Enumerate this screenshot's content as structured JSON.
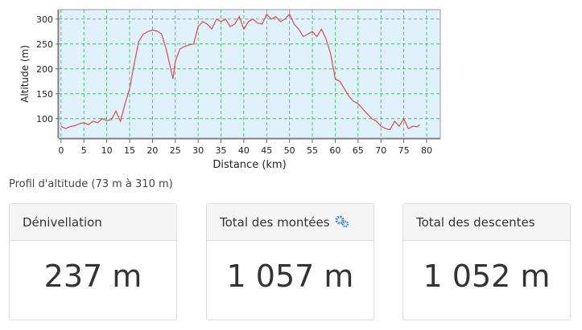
{
  "chart_data": {
    "type": "line",
    "x_label": "Distance (km)",
    "y_label": "Altitude (m)",
    "x": [
      0,
      1,
      2,
      3,
      4,
      5,
      6,
      7,
      8,
      9,
      10,
      11,
      12,
      13,
      14,
      15,
      16,
      17,
      18,
      19,
      20,
      21,
      22,
      23,
      24,
      24.5,
      25,
      26,
      27,
      28,
      29,
      30,
      31,
      32,
      33,
      34,
      35,
      36,
      37,
      38,
      39,
      40,
      41,
      42,
      43,
      44,
      45,
      46,
      47,
      48,
      49,
      50,
      51,
      52,
      53,
      54,
      55,
      56,
      57,
      58,
      59,
      60,
      61,
      62,
      63,
      64,
      65,
      66,
      67,
      68,
      69,
      70,
      71,
      72,
      73,
      74,
      75,
      76,
      77,
      78,
      78.5
    ],
    "values": [
      85,
      80,
      84,
      86,
      90,
      92,
      88,
      95,
      92,
      100,
      96,
      98,
      115,
      95,
      130,
      160,
      210,
      255,
      270,
      275,
      278,
      276,
      270,
      240,
      200,
      180,
      215,
      240,
      245,
      248,
      250,
      285,
      295,
      290,
      280,
      300,
      295,
      300,
      285,
      290,
      305,
      280,
      295,
      300,
      292,
      290,
      310,
      300,
      305,
      295,
      300,
      310,
      290,
      280,
      265,
      270,
      275,
      265,
      280,
      260,
      230,
      180,
      175,
      160,
      145,
      135,
      130,
      120,
      110,
      100,
      95,
      85,
      80,
      78,
      95,
      85,
      100,
      80,
      85,
      84,
      88
    ],
    "color": "#e8474a",
    "xlim": [
      -0.5,
      83
    ],
    "ylim": [
      61,
      319
    ],
    "xticks": [
      0,
      5,
      10,
      15,
      20,
      25,
      30,
      35,
      40,
      45,
      50,
      55,
      60,
      65,
      70,
      75,
      80
    ],
    "yticks": [
      100,
      150,
      200,
      250,
      300
    ],
    "grid": true
  },
  "caption": "Profil d'altitude (73 m à 310 m)",
  "cards": [
    {
      "title": "Dénivellation",
      "value": "237 m"
    },
    {
      "title": "Total des montées",
      "value": "1 057 m"
    },
    {
      "title": "Total des descentes",
      "value": "1 052 m"
    }
  ]
}
